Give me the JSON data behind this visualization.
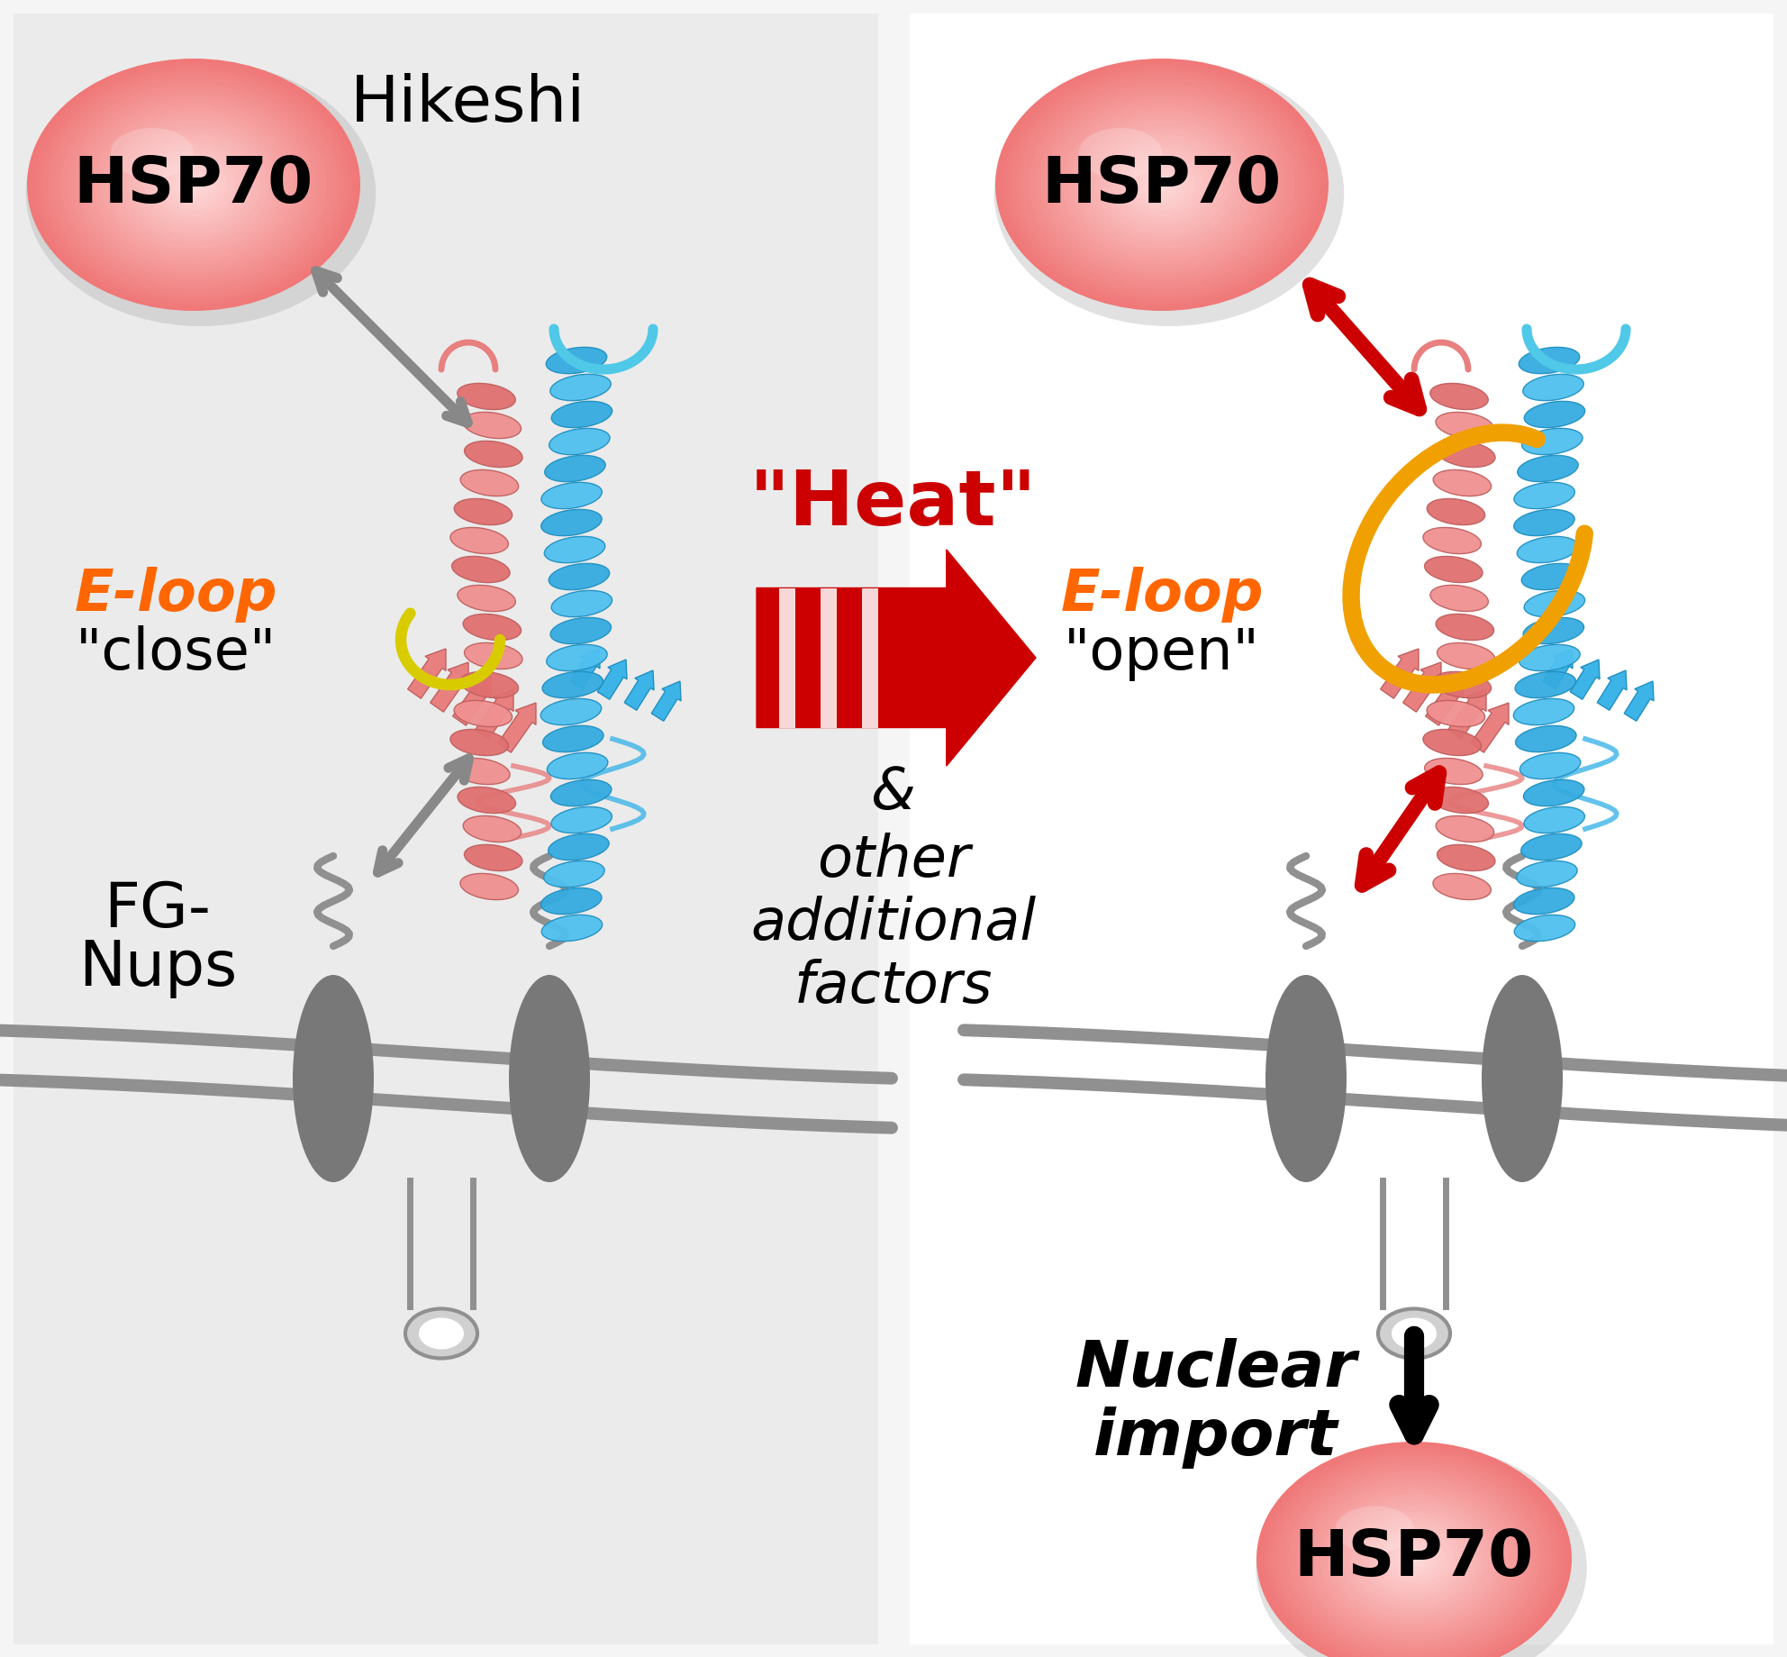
{
  "bg_color": "#f5f5f5",
  "left_panel_bg": "#ebebeb",
  "right_panel_bg": "#ffffff",
  "hsp70_pink_outer": "#f08080",
  "hsp70_pink_mid": "#f5a0a0",
  "hsp70_pink_inner": "#ffd0d0",
  "gray_color": "#999999",
  "dark_gray": "#777777",
  "red_color": "#cc0000",
  "orange_color": "#ff6600",
  "gold_color": "#f0a800",
  "blue_helix": "#3cb4e8",
  "pink_helix": "#e88080",
  "cyan_loop": "#40c8e8",
  "title_hikeshi": "Hikeshi",
  "title_heat": "\"Heat\"",
  "label_hsp70": "HSP70",
  "label_eloop_close_1": "E-loop",
  "label_eloop_close_2": "\"close\"",
  "label_eloop_open_1": "E-loop",
  "label_eloop_open_2": "\"open\"",
  "label_fgnups_1": "FG-",
  "label_fgnups_2": "Nups",
  "label_nuclear_1": "Nuclear",
  "label_nuclear_2": "import",
  "label_amp": "&",
  "label_other": "other",
  "label_additional": "additional",
  "label_factors": "factors"
}
